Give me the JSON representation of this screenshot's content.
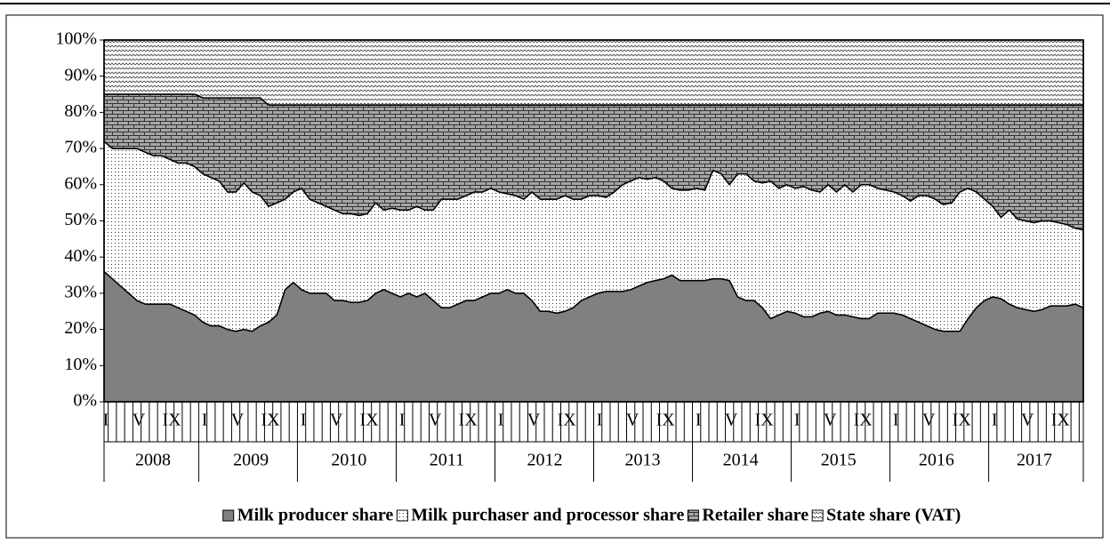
{
  "chart_data": {
    "type": "stacked_area_100",
    "categories": [
      "I",
      null,
      null,
      null,
      "V",
      null,
      null,
      null,
      "IX",
      null,
      null,
      null,
      "I",
      null,
      null,
      null,
      "V",
      null,
      null,
      null,
      "IX",
      null,
      null,
      null,
      "I",
      null,
      null,
      null,
      "V",
      null,
      null,
      null,
      "IX",
      null,
      null,
      null,
      "I",
      null,
      null,
      null,
      "V",
      null,
      null,
      null,
      "IX",
      null,
      null,
      null,
      "I",
      null,
      null,
      null,
      "V",
      null,
      null,
      null,
      "IX",
      null,
      null,
      null,
      "I",
      null,
      null,
      null,
      "V",
      null,
      null,
      null,
      "IX",
      null,
      null,
      null,
      "I",
      null,
      null,
      null,
      "V",
      null,
      null,
      null,
      "IX",
      null,
      null,
      null,
      "I",
      null,
      null,
      null,
      "V",
      null,
      null,
      null,
      "IX",
      null,
      null,
      null,
      "I",
      null,
      null,
      null,
      "V",
      null,
      null,
      null,
      "IX",
      null,
      null,
      null,
      "I",
      null,
      null,
      null,
      "V",
      null,
      null,
      null,
      "IX",
      null,
      null,
      null
    ],
    "category_groups": [
      "2008",
      "2009",
      "2010",
      "2011",
      "2012",
      "2013",
      "2014",
      "2015",
      "2016",
      "2017"
    ],
    "ylim": [
      0,
      100
    ],
    "yticks": [
      {
        "value": 0,
        "label": "0%"
      },
      {
        "value": 10,
        "label": "10%"
      },
      {
        "value": 20,
        "label": "20%"
      },
      {
        "value": 30,
        "label": "30%"
      },
      {
        "value": 40,
        "label": "40%"
      },
      {
        "value": 50,
        "label": "50%"
      },
      {
        "value": 60,
        "label": "60%"
      },
      {
        "value": 70,
        "label": "70%"
      },
      {
        "value": 80,
        "label": "80%"
      },
      {
        "value": 90,
        "label": "90%"
      },
      {
        "value": 100,
        "label": "100%"
      }
    ],
    "legend": "bottom",
    "series": [
      {
        "name": "Milk producer share",
        "color": "#808080",
        "pattern": "solid",
        "values": [
          36,
          34,
          32,
          30,
          28,
          27,
          27,
          27,
          27,
          26,
          25,
          24,
          22,
          21,
          21,
          20,
          19.5,
          20,
          19.5,
          21,
          22,
          24,
          31,
          33,
          31,
          30,
          30,
          30,
          28,
          28,
          27.5,
          27.5,
          28,
          30,
          31,
          30,
          29,
          30,
          29,
          30,
          28,
          26,
          26,
          27,
          28,
          28,
          29,
          30,
          30,
          31,
          30,
          30,
          28,
          25,
          25,
          24.5,
          25,
          26,
          28,
          29,
          30,
          30.5,
          30.5,
          30.5,
          31,
          32,
          33,
          33.5,
          34,
          35,
          33.5,
          33.5,
          33.5,
          33.5,
          34,
          34,
          33.5,
          29,
          28,
          28,
          26,
          23,
          24,
          25,
          24.5,
          23.5,
          23.5,
          24.5,
          25,
          24,
          24,
          23.5,
          23,
          23,
          24.5,
          24.5,
          24.5,
          24,
          23,
          22,
          21,
          20,
          19.5,
          19.5,
          19.5,
          23,
          26,
          28,
          29,
          28.5,
          27,
          26,
          25.5,
          25,
          25.5,
          26.5,
          26.5,
          26.5,
          27,
          26
        ]
      },
      {
        "name": "Milk purchaser and processor share",
        "color": "#ffffff",
        "pattern": "dots",
        "values": [
          36,
          36,
          38,
          40,
          42,
          42,
          41,
          41,
          40,
          40,
          41,
          41,
          41,
          41,
          40,
          38,
          38.5,
          40.5,
          38.5,
          36,
          32,
          31,
          25,
          25,
          28,
          26,
          25,
          24,
          25,
          24,
          24.5,
          24,
          24,
          25,
          22,
          23.5,
          24,
          23,
          25,
          23,
          25,
          30,
          30,
          29,
          29,
          30,
          29,
          29,
          28,
          26.5,
          27,
          26,
          30,
          31,
          31,
          31.5,
          32,
          30,
          28,
          28,
          27,
          26,
          27.5,
          29.5,
          30,
          30,
          28.5,
          28.5,
          27,
          24,
          25,
          25,
          25.5,
          25,
          30,
          29,
          26.5,
          34,
          35,
          33,
          34.5,
          38,
          35,
          35,
          34.5,
          36,
          35,
          33.5,
          35,
          34,
          36,
          34.5,
          37,
          37,
          34.5,
          34,
          33.5,
          33,
          32.5,
          35,
          36,
          36,
          35,
          35.5,
          38.5,
          36,
          32,
          28,
          25,
          22.5,
          26,
          24.5,
          24.5,
          24.5,
          24.5,
          23.5,
          23,
          22.5,
          21,
          21.5
        ]
      },
      {
        "name": "Retailer share",
        "color": "#a6a6a6",
        "pattern": "brick",
        "values": [
          13,
          15,
          15,
          15,
          15,
          16,
          17,
          17,
          18,
          19,
          19,
          20,
          21,
          22,
          23,
          26,
          26,
          23.5,
          26,
          27,
          28,
          27,
          26,
          24,
          23,
          26,
          27,
          28,
          29,
          30,
          30,
          30.5,
          30,
          27,
          29,
          28.5,
          29,
          29,
          28,
          29,
          29,
          26,
          26,
          26,
          25,
          24,
          24,
          23,
          24,
          24.5,
          25,
          26,
          24,
          26,
          26,
          26,
          25,
          26,
          26,
          25,
          25,
          25.5,
          24,
          22,
          21,
          20,
          20.5,
          20,
          21,
          23,
          23.5,
          23.5,
          23,
          23.5,
          18,
          19,
          22,
          19,
          19,
          21,
          21.5,
          21,
          23,
          22,
          23,
          22.5,
          23.5,
          24,
          22,
          24,
          22,
          24,
          22,
          22,
          23,
          23.5,
          24,
          25,
          26.5,
          25,
          25,
          26,
          27.5,
          27,
          24,
          23,
          24,
          26,
          28,
          31,
          29,
          31.5,
          32,
          32.5,
          32,
          32,
          32.5,
          33,
          34,
          34.5
        ]
      },
      {
        "name": "State share (VAT)",
        "color": "#ffffff",
        "pattern": "zigzag",
        "values": [
          15,
          15,
          15,
          15,
          15,
          15,
          15,
          15,
          15,
          15,
          15,
          15,
          16,
          16,
          16,
          16,
          16,
          16,
          16,
          16,
          18,
          18,
          18,
          18,
          18,
          18,
          18,
          18,
          18,
          18,
          18,
          18,
          18,
          18,
          18,
          18,
          18,
          18,
          18,
          18,
          18,
          18,
          18,
          18,
          18,
          18,
          18,
          18,
          18,
          18,
          18,
          18,
          18,
          18,
          18,
          18,
          18,
          18,
          18,
          18,
          18,
          18,
          18,
          18,
          18,
          18,
          18,
          18,
          18,
          18,
          18,
          18,
          18,
          18,
          18,
          18,
          18,
          18,
          18,
          18,
          18,
          18,
          18,
          18,
          18,
          18,
          18,
          18,
          18,
          18,
          18,
          18,
          18,
          18,
          18,
          18,
          18,
          18,
          18,
          18,
          18,
          18,
          18,
          18,
          18,
          18,
          18,
          18,
          18,
          18,
          18,
          18,
          18,
          18,
          18,
          18,
          18,
          18,
          18,
          18
        ]
      }
    ]
  }
}
